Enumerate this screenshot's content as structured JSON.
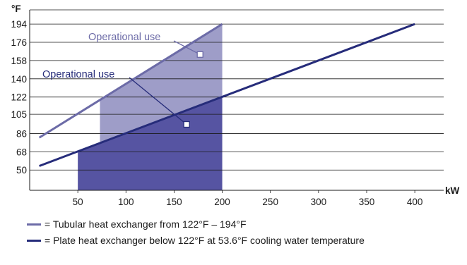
{
  "chart_data": {
    "type": "line",
    "y_unit": "°F",
    "x_unit": "kW",
    "y_ticks": [
      50,
      68,
      86,
      105,
      122,
      140,
      158,
      176,
      194
    ],
    "x_ticks": [
      50,
      100,
      150,
      200,
      250,
      300,
      350,
      400
    ],
    "xlim": [
      0,
      430
    ],
    "ylim": [
      30,
      208
    ],
    "grid": "horizontal",
    "series": [
      {
        "key": "tubular",
        "label": "= Tubular heat exchanger from 122°F – 194°F",
        "color": "#6c6ba7",
        "points": [
          [
            10,
            82
          ],
          [
            200,
            194
          ]
        ],
        "operational_area": {
          "x_from": 73,
          "x_to": 200,
          "fill": "#9e9dc8"
        }
      },
      {
        "key": "plate",
        "label": "= Plate heat exchanger below 122°F at 53.6°F cooling water temperature",
        "color": "#262c7a",
        "points": [
          [
            10,
            54
          ],
          [
            400,
            194
          ]
        ],
        "operational_area": {
          "x_from": 50,
          "x_to": 200,
          "fill": "#5654a2"
        }
      }
    ],
    "annotations": [
      {
        "text": "Operational use",
        "color": "#6c6ba7",
        "marker": [
          177,
          164
        ]
      },
      {
        "text": "Operational use",
        "color": "#262c7a",
        "marker": [
          163,
          95
        ]
      }
    ]
  }
}
